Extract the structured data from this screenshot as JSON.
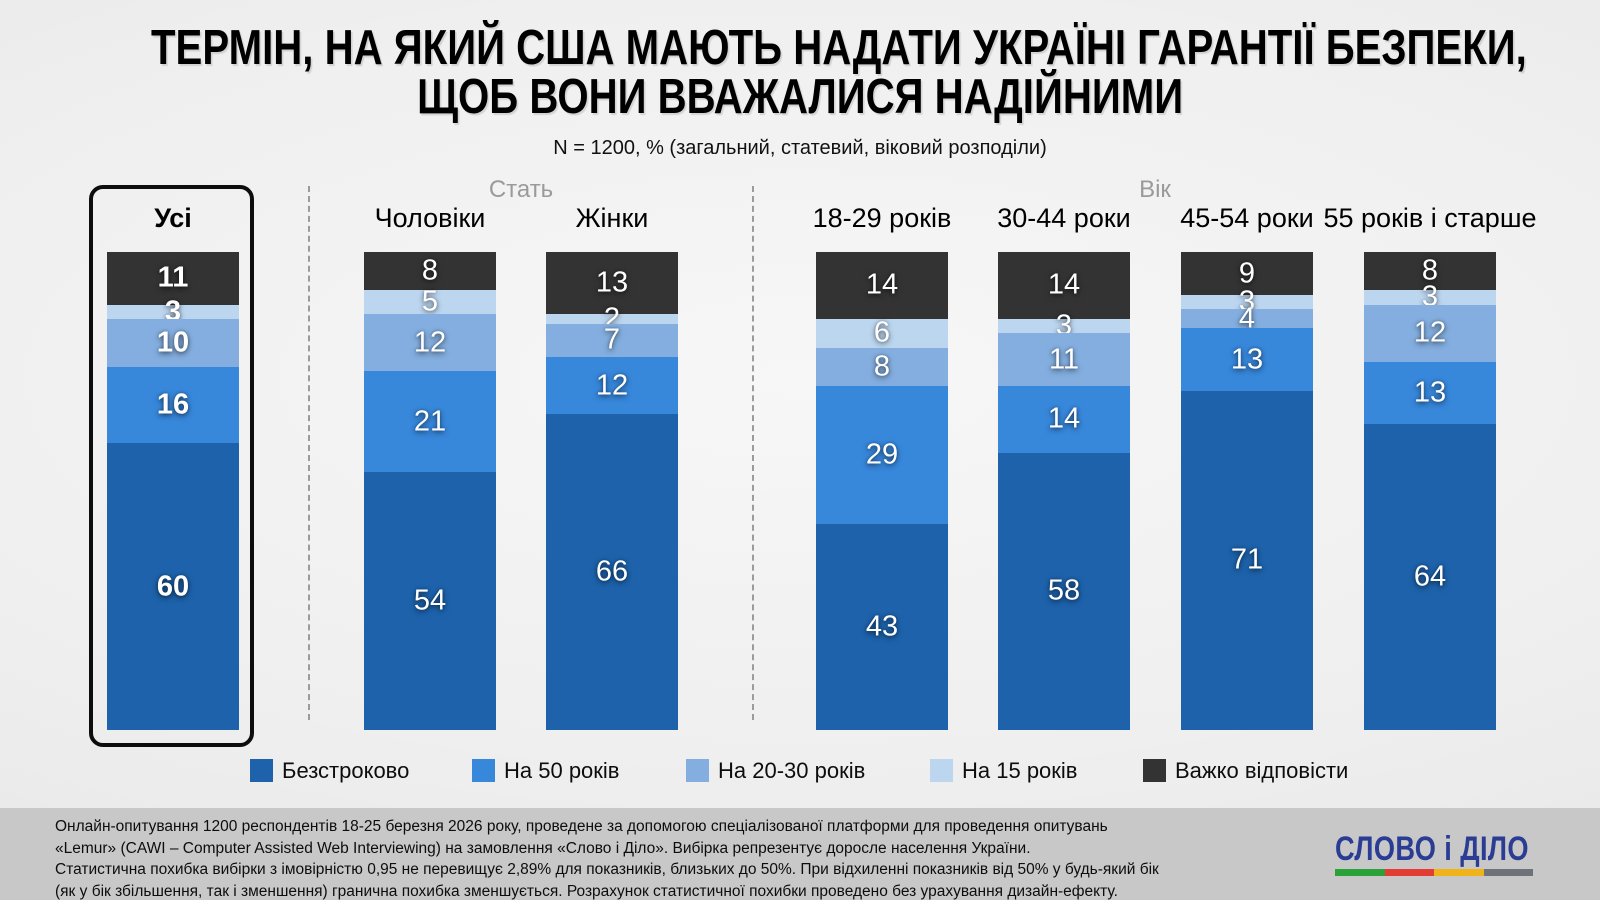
{
  "header": {
    "title_line1": "ТЕРМІН, НА ЯКИЙ США МАЮТЬ НАДАТИ УКРАЇНІ ГАРАНТІЇ БЕЗПЕКИ,",
    "title_line2": "ЩОБ ВОНИ ВВАЖАЛИСЯ НАДІЙНИМИ",
    "subtitle": "N = 1200, % (загальний, статевий, віковий розподіли)"
  },
  "chart_data": {
    "type": "bar",
    "variant": "stacked-vertical-100",
    "unit": "%",
    "ylim": [
      0,
      100
    ],
    "legend_position": "bottom",
    "series_bottom_to_top": [
      {
        "name": "Безстроково",
        "color": "#1D62AB"
      },
      {
        "name": "На 50 років",
        "color": "#3787DB"
      },
      {
        "name": "На 20-30 років",
        "color": "#83AEDF"
      },
      {
        "name": "На 15 років",
        "color": "#BCD6F0"
      },
      {
        "name": "Важко відповісти",
        "color": "#333333"
      }
    ],
    "columns": [
      {
        "label": "Усі",
        "group": "",
        "emphasis": true,
        "values": [
          60,
          16,
          10,
          3,
          11
        ]
      },
      {
        "label": "Чоловіки",
        "group": "Стать",
        "emphasis": false,
        "values": [
          54,
          21,
          12,
          5,
          8
        ]
      },
      {
        "label": "Жінки",
        "group": "Стать",
        "emphasis": false,
        "values": [
          66,
          12,
          7,
          2,
          13
        ]
      },
      {
        "label": "18-29 років",
        "group": "Вік",
        "emphasis": false,
        "values": [
          43,
          29,
          8,
          6,
          14
        ]
      },
      {
        "label": "30-44 роки",
        "group": "Вік",
        "emphasis": false,
        "values": [
          58,
          14,
          11,
          3,
          14
        ]
      },
      {
        "label": "45-54 роки",
        "group": "Вік",
        "emphasis": false,
        "values": [
          71,
          13,
          4,
          3,
          9
        ]
      },
      {
        "label": "55 років і старше",
        "group": "Вік",
        "emphasis": false,
        "values": [
          64,
          13,
          12,
          3,
          8
        ]
      }
    ],
    "groups": [
      {
        "label": "Стать",
        "columns": [
          "Чоловіки",
          "Жінки"
        ]
      },
      {
        "label": "Вік",
        "columns": [
          "18-29 років",
          "30-44 роки",
          "45-54 роки",
          "55 років і старше"
        ]
      }
    ]
  },
  "footer": {
    "note_lines": [
      "Онлайн-опитування 1200 респондентів 18-25 березня 2026 року, проведене за допомогою спеціалізованої платформи для проведення опитувань",
      "«Lemur» (CAWI – Computer Assisted Web Interviewing) на замовлення «Слово і Діло». Вибірка репрезентує доросле населення України.",
      "Статистична похибка вибірки з імовірністю 0,95 не перевищує 2,89% для показників, близьких до 50%. При відхиленні показників від 50% у будь-який бік",
      "(як у бік збільшення, так і зменшення) гранична похибка зменшується. Розрахунок статистичної похибки проведено без урахування дизайн-ефекту."
    ],
    "logo_text": "СЛОВО і ДІЛО",
    "logo_text_color": "#2A3C94",
    "logo_bar_colors": [
      "#2BA239",
      "#E23C33",
      "#F0B31A",
      "#6E737A"
    ]
  }
}
